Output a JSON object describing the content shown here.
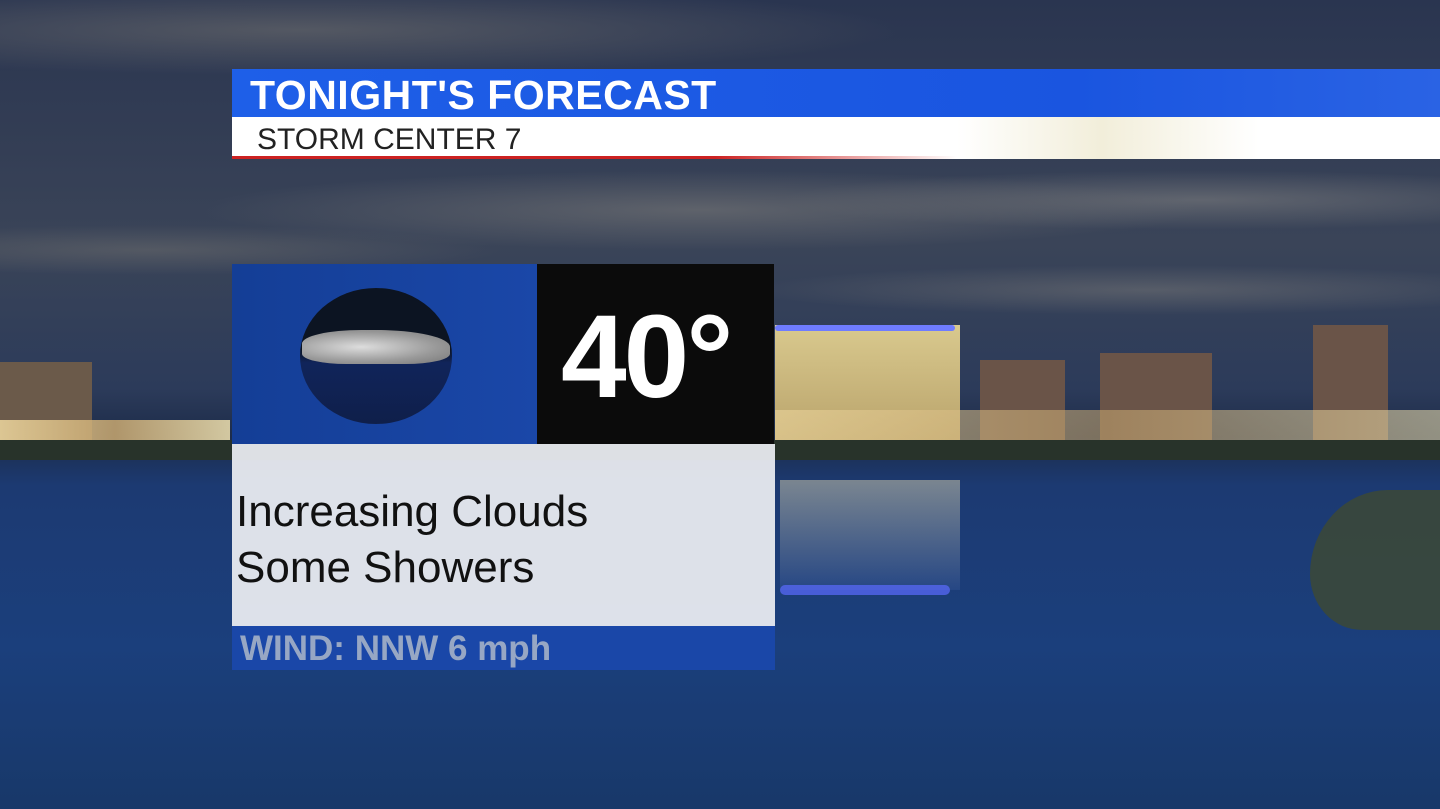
{
  "header": {
    "title": "TONIGHT'S FORECAST",
    "subtitle": "STORM CENTER 7"
  },
  "forecast": {
    "icon": "cloud-showers-icon",
    "temperature": "40°",
    "conditions": [
      "Increasing Clouds",
      "Some Showers"
    ],
    "wind": "WIND: NNW 6 mph"
  },
  "colors": {
    "title_blue": "#1e5fe8",
    "panel_blue": "#1a47a8",
    "temp_black": "#0b0b0b",
    "accent_red": "#cc2222"
  }
}
